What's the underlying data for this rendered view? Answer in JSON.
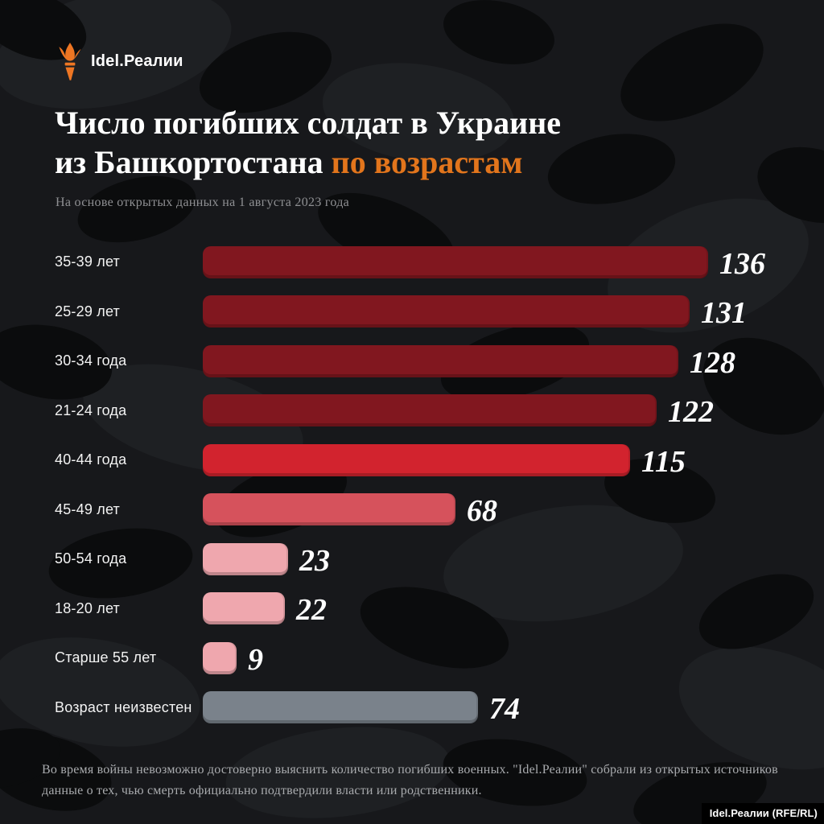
{
  "brand": {
    "logo_text": "Idel.Реалии",
    "logo_icon": "torch-icon",
    "credit": "Idel.Реалии (RFE/RL)"
  },
  "title": {
    "line1": "Число погибших солдат в Украине",
    "line2_white": "из Башкортостана ",
    "line2_orange": "по возрастам"
  },
  "subtitle": "На основе открытых данных на 1 августа 2023 года",
  "footnote": "Во время войны невозможно достоверно выяснить количество погибших военных. \"Idel.Реалии\" собрали из открытых источников данные о тех, чью смерть официально подтвердили власти или родственники.",
  "colors": {
    "background": "#17181b",
    "camo_dark_blob": "#0b0c0d",
    "camo_mid_blob": "#1e2023",
    "accent_orange": "#e2751c",
    "dark_red": "#81171f",
    "bright_red": "#d2232e",
    "mid_red": "#d6525c",
    "pink": "#efa7ae",
    "gray_bar": "#7a828b",
    "text_white": "#ffffff",
    "text_gray": "#8f9093"
  },
  "chart_data": {
    "type": "bar",
    "orientation": "horizontal",
    "title": "Число погибших солдат в Украине из Башкортостана по возрастам",
    "subtitle": "На основе открытых данных на 1 августа 2023 года",
    "categories": [
      "35-39 лет",
      "25-29 лет",
      "30-34 года",
      "21-24 года",
      "40-44 года",
      "45-49 лет",
      "50-54 года",
      "18-20 лет",
      "Старше 55 лет",
      "Возраст неизвестен"
    ],
    "values": [
      136,
      131,
      128,
      122,
      115,
      68,
      23,
      22,
      9,
      74
    ],
    "bar_colors": [
      "#81171f",
      "#81171f",
      "#81171f",
      "#81171f",
      "#d2232e",
      "#d6525c",
      "#efa7ae",
      "#efa7ae",
      "#efa7ae",
      "#7a828b"
    ],
    "value_labels_shown": true,
    "xlim": [
      0,
      140
    ],
    "grid": false,
    "legend": false
  }
}
